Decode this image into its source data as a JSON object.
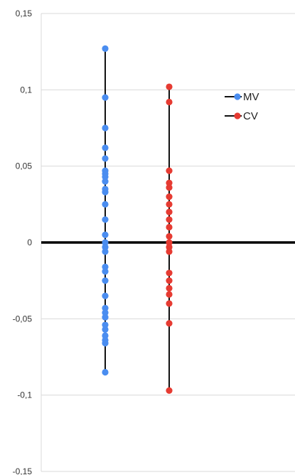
{
  "chart_data": {
    "type": "scatter",
    "title": "",
    "xlabel": "",
    "ylabel": "",
    "ylim": [
      -0.15,
      0.15
    ],
    "y_ticks": [
      0.15,
      0.1,
      0.05,
      0,
      -0.05,
      -0.1,
      -0.15
    ],
    "y_tick_labels": [
      "0,15",
      "0,1",
      "0,05",
      "0",
      "-0,05",
      "-0,1",
      "-0,15"
    ],
    "grid": true,
    "legend_position": "top-right",
    "zero_line": true,
    "series": [
      {
        "name": "MV",
        "color": "#4a8df0",
        "x_position": 1,
        "range_line": true,
        "values": [
          0.127,
          0.095,
          0.075,
          0.062,
          0.055,
          0.047,
          0.045,
          0.043,
          0.04,
          0.035,
          0.033,
          0.025,
          0.015,
          0.005,
          0.0,
          -0.003,
          -0.006,
          -0.016,
          -0.019,
          -0.025,
          -0.035,
          -0.043,
          -0.046,
          -0.049,
          -0.054,
          -0.057,
          -0.061,
          -0.064,
          -0.066,
          -0.085
        ]
      },
      {
        "name": "CV",
        "color": "#e63b32",
        "x_position": 2,
        "range_line": true,
        "values": [
          0.102,
          0.092,
          0.047,
          0.039,
          0.036,
          0.03,
          0.025,
          0.02,
          0.015,
          0.01,
          0.004,
          0.0,
          -0.003,
          -0.006,
          -0.02,
          -0.025,
          -0.03,
          -0.034,
          -0.04,
          -0.053,
          -0.097
        ]
      }
    ]
  }
}
